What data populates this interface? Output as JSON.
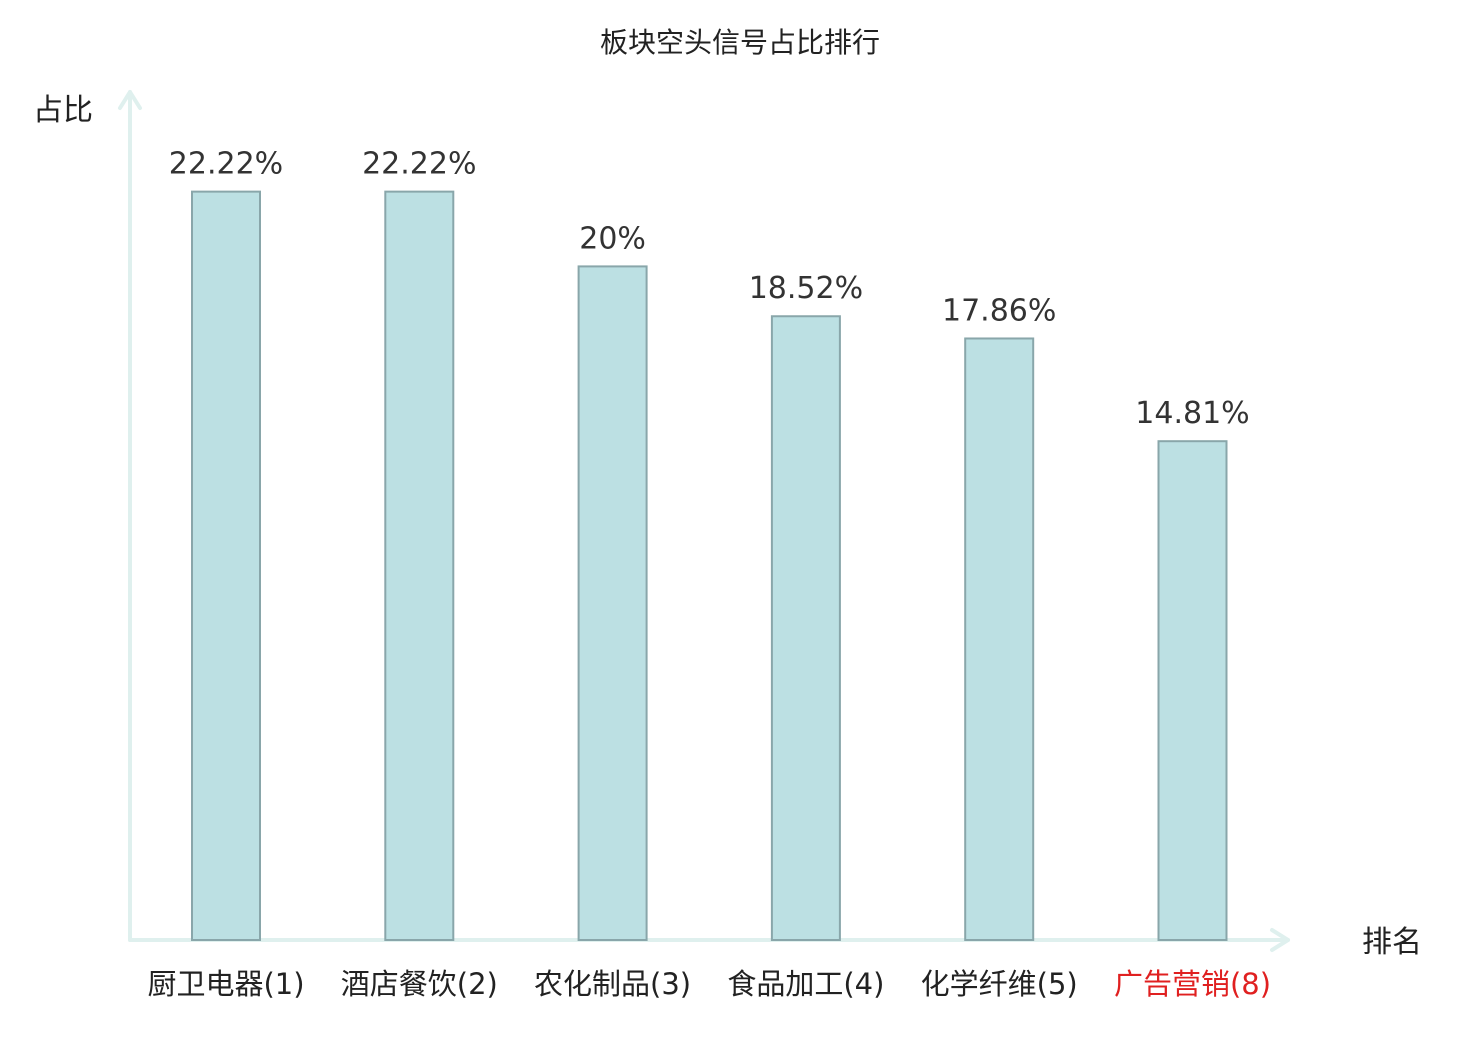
{
  "chart_data": {
    "type": "bar",
    "title": "板块空头信号占比排行",
    "xlabel": "排名",
    "ylabel": "占比",
    "categories": [
      "厨卫电器(1)",
      "酒店餐饮(2)",
      "农化制品(3)",
      "食品加工(4)",
      "化学纤维(5)",
      "广告营销(8)"
    ],
    "values": [
      22.22,
      22.22,
      20,
      18.52,
      17.86,
      14.81
    ],
    "value_labels": [
      "22.22%",
      "22.22%",
      "20%",
      "18.52%",
      "17.86%",
      "14.81%"
    ],
    "highlight_category": "广告营销(8)",
    "ylim": [
      0,
      25
    ],
    "grid": false,
    "colors": {
      "bar_fill": "#bce0e3",
      "bar_stroke": "#89a6aa",
      "axis": "#dff0ee",
      "highlight_label": "#e02020"
    }
  }
}
